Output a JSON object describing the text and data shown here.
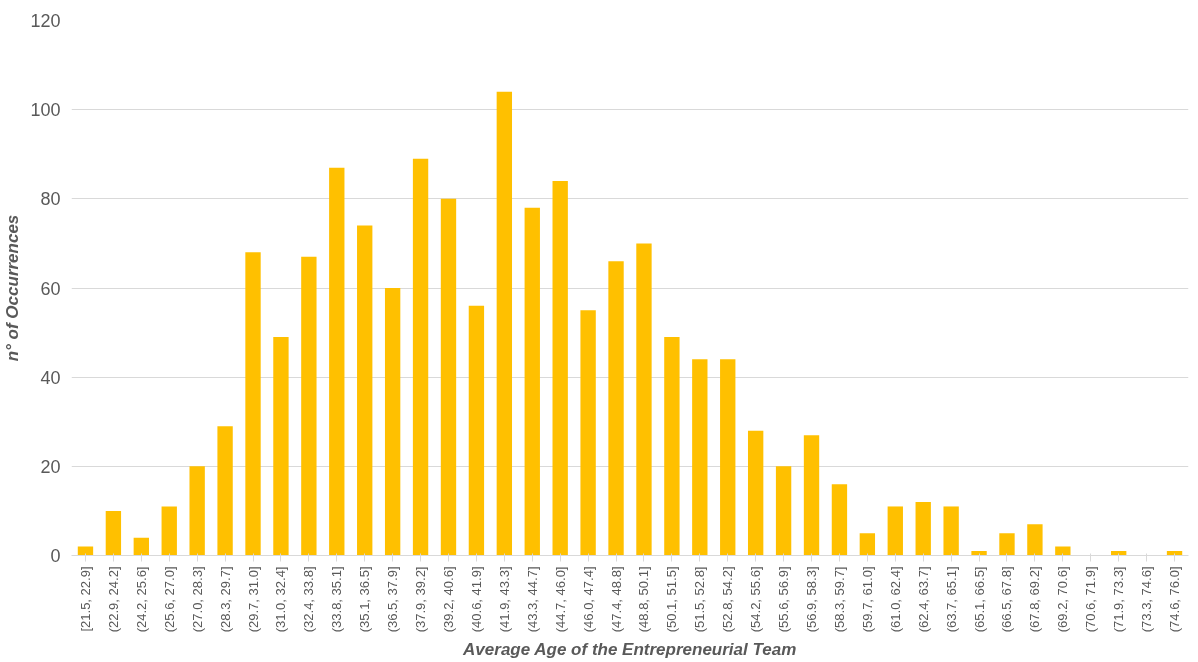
{
  "chart_data": {
    "type": "bar",
    "xlabel": "Average Age of the Entrepreneurial Team",
    "ylabel": "n° of Occurrences",
    "categories": [
      "[21.5, 22.9]",
      "(22.9, 24.2]",
      "(24.2, 25.6]",
      "(25.6, 27.0]",
      "(27.0, 28.3]",
      "(28.3, 29.7]",
      "(29.7, 31.0]",
      "(31.0, 32.4]",
      "(32.4, 33.8]",
      "(33.8, 35.1]",
      "(35.1, 36.5]",
      "(36.5, 37.9]",
      "(37.9, 39.2]",
      "(39.2, 40.6]",
      "(40.6, 41.9]",
      "(41.9, 43.3]",
      "(43.3, 44.7]",
      "(44.7, 46.0]",
      "(46.0, 47.4]",
      "(47.4, 48.8]",
      "(48.8, 50.1]",
      "(50.1, 51.5]",
      "(51.5, 52.8]",
      "(52.8, 54.2]",
      "(54.2, 55.6]",
      "(55.6, 56.9]",
      "(56.9, 58.3]",
      "(58.3, 59.7]",
      "(59.7, 61.0]",
      "(61.0, 62.4]",
      "(62.4, 63.7]",
      "(63.7, 65.1]",
      "(65.1, 66.5]",
      "(66.5, 67.8]",
      "(67.8, 69.2]",
      "(69.2, 70.6]",
      "(70.6, 71.9]",
      "(71.9, 73.3]",
      "(73.3, 74.6]",
      "(74.6, 76.0]"
    ],
    "values": [
      2,
      10,
      4,
      11,
      20,
      29,
      68,
      49,
      67,
      87,
      74,
      60,
      89,
      80,
      56,
      104,
      78,
      84,
      55,
      66,
      70,
      49,
      44,
      44,
      28,
      20,
      27,
      16,
      5,
      11,
      12,
      11,
      1,
      5,
      7,
      2,
      0,
      1,
      0,
      1
    ],
    "color": "#ffc000",
    "ylim": [
      0,
      120
    ],
    "yticks": [
      0,
      20,
      40,
      60,
      80,
      100,
      120
    ],
    "grid": "y"
  }
}
